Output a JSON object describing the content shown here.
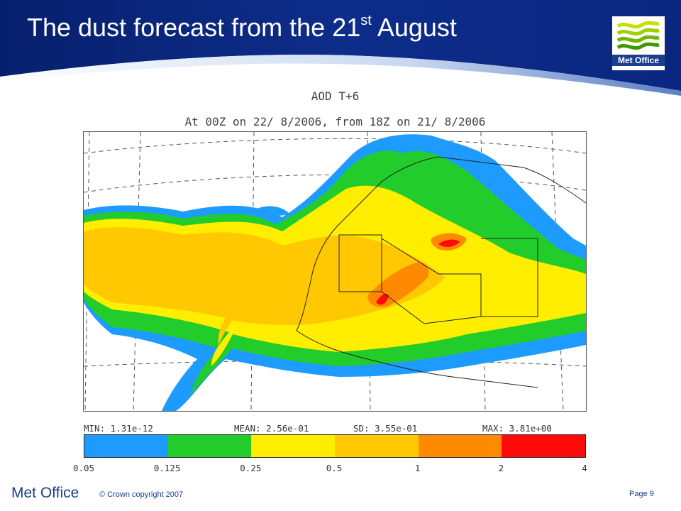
{
  "header": {
    "title_main": "The dust forecast from the 21",
    "title_sup": "st",
    "title_end": " August",
    "bg_color": "#0b2a84"
  },
  "logo": {
    "text": "Met Office",
    "icon": "met-office-waves-logo"
  },
  "map": {
    "title": "AOD T+6",
    "subtitle": "At 00Z on 22/ 8/2006, from 18Z on 21/ 8/2006",
    "stats": {
      "min_label": "MIN:",
      "min_value": "1.31e-12",
      "mean_label": "MEAN:",
      "mean_value": "2.56e-01",
      "sd_label": "SD:",
      "sd_value": "3.55e-01",
      "max_label": "MAX:",
      "max_value": "3.81e+00"
    },
    "colorbar": {
      "colors": [
        "#1e9bff",
        "#22cc2a",
        "#ffee00",
        "#ffc800",
        "#ff8a00",
        "#ff0a0a"
      ],
      "ticks": [
        "0.05",
        "0.125",
        "0.25",
        "0.5",
        "1",
        "2",
        "4"
      ]
    }
  },
  "footer": {
    "brand": "Met Office",
    "copyright": "© Crown copyright 2007",
    "page": "Page 9"
  }
}
